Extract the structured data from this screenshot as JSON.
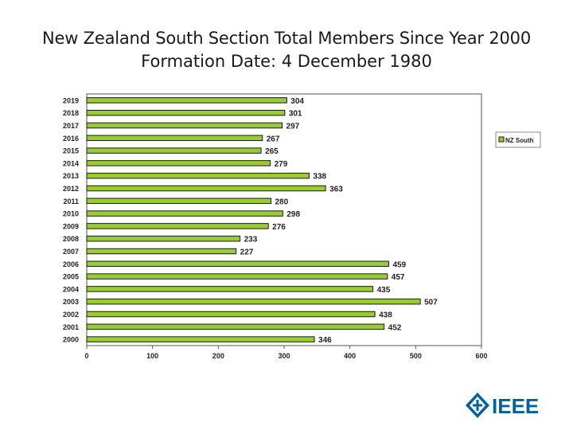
{
  "title": "New Zealand South Section Total Members Since Year 2000",
  "subtitle": "Formation Date: 4 December 1980",
  "logo_text": "IEEE",
  "chart_data": {
    "type": "bar",
    "orientation": "horizontal",
    "categories": [
      "2019",
      "2018",
      "2017",
      "2016",
      "2015",
      "2014",
      "2013",
      "2012",
      "2011",
      "2010",
      "2009",
      "2008",
      "2007",
      "2006",
      "2005",
      "2004",
      "2003",
      "2002",
      "2001",
      "2000"
    ],
    "series": [
      {
        "name": "NZ South",
        "color": "#99cc33",
        "values": [
          304,
          301,
          297,
          267,
          265,
          279,
          338,
          363,
          280,
          298,
          276,
          233,
          227,
          459,
          457,
          435,
          507,
          438,
          452,
          346
        ]
      }
    ],
    "xlim": [
      0,
      600
    ],
    "xticks": [
      0,
      100,
      200,
      300,
      400,
      500,
      600
    ],
    "data_labels": true,
    "grid": false,
    "legend_position": "right"
  }
}
